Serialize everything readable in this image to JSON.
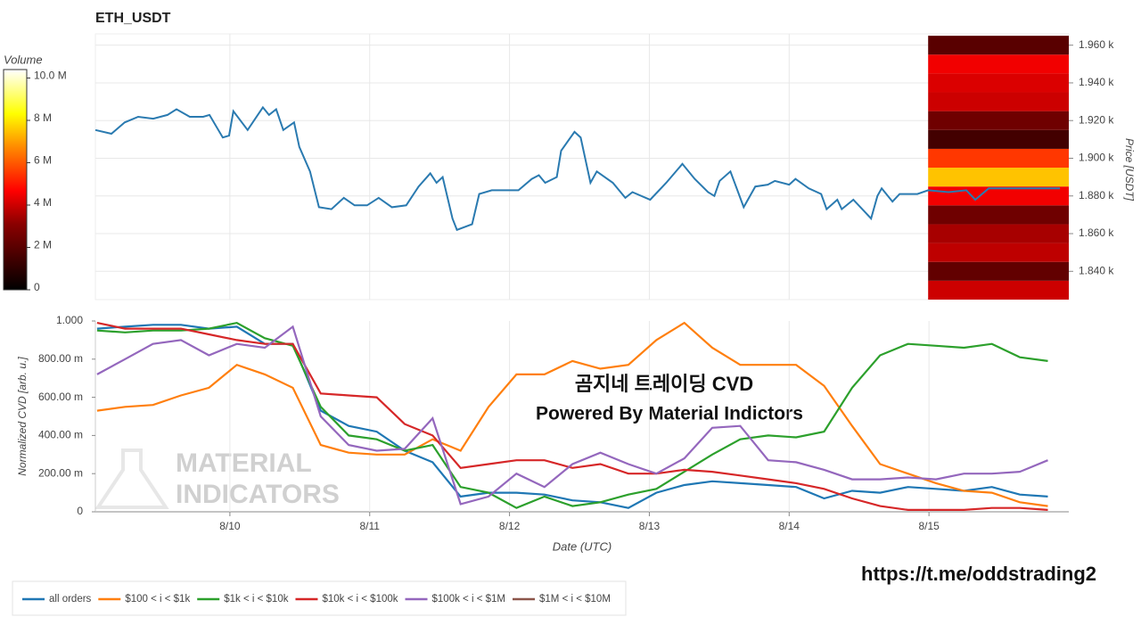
{
  "chart_data": [
    {
      "type": "line",
      "title": "ETH_USDT",
      "y_label": "Price [USDT]",
      "color": "#2a7ab0",
      "x": [
        9.038,
        9.153,
        9.248,
        9.344,
        9.452,
        9.554,
        9.618,
        9.713,
        9.809,
        9.854,
        9.949,
        9.994,
        10.025,
        10.127,
        10.236,
        10.28,
        10.331,
        10.382,
        10.459,
        10.497,
        10.573,
        10.637,
        10.726,
        10.815,
        10.892,
        10.981,
        11.064,
        11.159,
        11.261,
        11.35,
        11.433,
        11.478,
        11.522,
        11.592,
        11.624,
        11.732,
        11.783,
        11.873,
        11.975,
        12.064,
        12.159,
        12.21,
        12.255,
        12.338,
        12.369,
        12.465,
        12.509,
        12.579,
        12.624,
        12.739,
        12.828,
        12.879,
        13.006,
        13.121,
        13.236,
        13.325,
        13.42,
        13.465,
        13.503,
        13.58,
        13.675,
        13.758,
        13.847,
        13.898,
        14.0,
        14.045,
        14.14,
        14.229,
        14.268,
        14.344,
        14.376,
        14.459,
        14.548,
        14.586,
        14.631,
        14.662,
        14.739,
        14.79,
        14.917,
        14.994,
        15.14,
        15.267,
        15.331,
        15.427,
        15.554,
        15.745,
        15.936
      ],
      "values": [
        1915,
        1913,
        1919,
        1922,
        1921,
        1923,
        1926,
        1922,
        1922,
        1923,
        1911,
        1912,
        1925,
        1915,
        1927,
        1923,
        1926,
        1915,
        1919,
        1906,
        1893,
        1874,
        1873,
        1879,
        1875,
        1875,
        1879,
        1874,
        1875,
        1885,
        1892,
        1887,
        1890,
        1868,
        1862,
        1865,
        1881,
        1883,
        1883,
        1883,
        1889,
        1891,
        1887,
        1890,
        1904,
        1914,
        1911,
        1887,
        1893,
        1887,
        1879,
        1882,
        1878,
        1887,
        1897,
        1889,
        1882,
        1880,
        1888,
        1893,
        1874,
        1885,
        1886,
        1888,
        1886,
        1889,
        1884,
        1881,
        1873,
        1878,
        1873,
        1878,
        1871,
        1868,
        1880,
        1884,
        1877,
        1881,
        1881,
        1883,
        1882,
        1883,
        1878,
        1884,
        1884,
        1884,
        1884
      ],
      "xlim": [
        9.038,
        16.0
      ],
      "ylim": [
        1825,
        1966
      ],
      "yticks": [
        {
          "value": 1840,
          "label": "1.840 k"
        },
        {
          "value": 1860,
          "label": "1.860 k"
        },
        {
          "value": 1880,
          "label": "1.880 k"
        },
        {
          "value": 1900,
          "label": "1.900 k"
        },
        {
          "value": 1920,
          "label": "1.920 k"
        },
        {
          "value": 1940,
          "label": "1.940 k"
        },
        {
          "value": 1960,
          "label": "1.960 k"
        }
      ],
      "grid": true,
      "heatmap": {
        "label": "Volume",
        "xrange": [
          14.994,
          16.0
        ],
        "bins": [
          1825,
          1835,
          1845,
          1855,
          1865,
          1875,
          1885,
          1895,
          1905,
          1915,
          1925,
          1935,
          1945,
          1955,
          1965
        ],
        "values": [
          4000000,
          2200000,
          3800000,
          3500000,
          2500000,
          4500000,
          7500000,
          5500000,
          1500000,
          2500000,
          4000000,
          4200000,
          4500000,
          2000000
        ],
        "clim": [
          0,
          10400000
        ],
        "cticks": [
          0,
          {
            "value": 2000000,
            "label": "2 M"
          },
          {
            "value": 4000000,
            "label": "4 M"
          },
          {
            "value": 6000000,
            "label": "6 M"
          },
          {
            "value": 8000000,
            "label": "8 M"
          },
          {
            "value": 10000000,
            "label": "10.0 M"
          }
        ]
      }
    },
    {
      "type": "line",
      "x_label": "Date (UTC)",
      "y_label": "Normalized CVD [arb. u.]",
      "x": [
        9.05,
        9.25,
        9.45,
        9.65,
        9.85,
        10.05,
        10.25,
        10.45,
        10.65,
        10.85,
        11.05,
        11.25,
        11.45,
        11.65,
        11.85,
        12.05,
        12.25,
        12.45,
        12.65,
        12.85,
        13.05,
        13.25,
        13.45,
        13.65,
        13.85,
        14.05,
        14.25,
        14.45,
        14.65,
        14.85,
        15.05,
        15.25,
        15.45,
        15.65,
        15.85
      ],
      "series": [
        {
          "name": "all orders",
          "color": "#1f77b4",
          "values": [
            0.96,
            0.97,
            0.98,
            0.98,
            0.96,
            0.97,
            0.88,
            0.88,
            0.53,
            0.45,
            0.42,
            0.32,
            0.26,
            0.08,
            0.1,
            0.1,
            0.09,
            0.06,
            0.05,
            0.02,
            0.1,
            0.14,
            0.16,
            0.15,
            0.14,
            0.13,
            0.07,
            0.11,
            0.1,
            0.13,
            0.12,
            0.11,
            0.13,
            0.09,
            0.08
          ]
        },
        {
          "name": "$100 < i < $1k",
          "color": "#ff7f0e",
          "values": [
            0.53,
            0.55,
            0.56,
            0.61,
            0.65,
            0.77,
            0.72,
            0.65,
            0.35,
            0.31,
            0.3,
            0.3,
            0.38,
            0.32,
            0.55,
            0.72,
            0.72,
            0.79,
            0.75,
            0.77,
            0.9,
            0.99,
            0.86,
            0.77,
            0.77,
            0.77,
            0.66,
            0.45,
            0.25,
            0.2,
            0.15,
            0.11,
            0.1,
            0.05,
            0.03
          ]
        },
        {
          "name": "$1k < i < $10k",
          "color": "#2ca02c",
          "values": [
            0.95,
            0.94,
            0.95,
            0.95,
            0.96,
            0.99,
            0.91,
            0.87,
            0.55,
            0.4,
            0.38,
            0.32,
            0.35,
            0.13,
            0.1,
            0.02,
            0.08,
            0.03,
            0.05,
            0.09,
            0.12,
            0.21,
            0.3,
            0.38,
            0.4,
            0.39,
            0.42,
            0.65,
            0.82,
            0.88,
            0.87,
            0.86,
            0.88,
            0.81,
            0.79
          ]
        },
        {
          "name": "$10k < i < $100k",
          "color": "#d62728",
          "values": [
            0.99,
            0.96,
            0.96,
            0.96,
            0.93,
            0.9,
            0.88,
            0.88,
            0.62,
            0.61,
            0.6,
            0.46,
            0.4,
            0.23,
            0.25,
            0.27,
            0.27,
            0.23,
            0.25,
            0.2,
            0.2,
            0.22,
            0.21,
            0.19,
            0.17,
            0.15,
            0.12,
            0.07,
            0.03,
            0.01,
            0.01,
            0.01,
            0.02,
            0.02,
            0.01
          ]
        },
        {
          "name": "$100k < i < $1M",
          "color": "#9467bd",
          "values": [
            0.72,
            0.8,
            0.88,
            0.9,
            0.82,
            0.88,
            0.86,
            0.97,
            0.5,
            0.35,
            0.32,
            0.33,
            0.49,
            0.04,
            0.08,
            0.2,
            0.13,
            0.25,
            0.31,
            0.25,
            0.2,
            0.28,
            0.44,
            0.45,
            0.27,
            0.26,
            0.22,
            0.17,
            0.17,
            0.18,
            0.17,
            0.2,
            0.2,
            0.21,
            0.27
          ]
        },
        {
          "name": "$1M < i < $10M",
          "color": "#8c564b",
          "values": [
            null,
            null,
            null,
            null,
            null,
            null,
            null,
            null,
            null,
            null,
            null,
            null,
            null,
            null,
            null,
            null,
            null,
            null,
            null,
            null,
            null,
            null,
            null,
            null,
            null,
            null,
            null,
            null,
            null,
            null,
            null,
            null,
            null,
            null,
            null
          ]
        }
      ],
      "xlim": [
        9.038,
        16.0
      ],
      "ylim": [
        0,
        1
      ],
      "xticks": [
        {
          "value": 10,
          "label": "8/10"
        },
        {
          "value": 11,
          "label": "8/11"
        },
        {
          "value": 12,
          "label": "8/12"
        },
        {
          "value": 13,
          "label": "8/13"
        },
        {
          "value": 14,
          "label": "8/14"
        },
        {
          "value": 15,
          "label": "8/15"
        }
      ],
      "yticks": [
        {
          "value": 0,
          "label": "0"
        },
        {
          "value": 0.2,
          "label": "200.00 m"
        },
        {
          "value": 0.4,
          "label": "400.00 m"
        },
        {
          "value": 0.6,
          "label": "600.00 m"
        },
        {
          "value": 0.8,
          "label": "800.00 m"
        },
        {
          "value": 1,
          "label": "1.000"
        }
      ],
      "grid": true,
      "legend": "bottom-left",
      "annotations": [
        "곰지네 트레이딩 CVD",
        "Powered By Material Indictors"
      ],
      "watermark": [
        "MATERIAL",
        "INDICATORS"
      ]
    }
  ],
  "footer_url": "https://t.me/oddstrading2"
}
